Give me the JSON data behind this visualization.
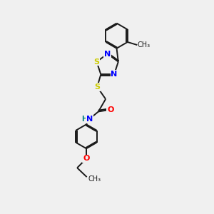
{
  "background_color": "#f0f0f0",
  "bond_color": "#1a1a1a",
  "S_color": "#cccc00",
  "N_color": "#0000ff",
  "O_color": "#ff0000",
  "H_color": "#008080",
  "font_size_atoms": 8,
  "line_width": 1.4,
  "figsize": [
    3.0,
    3.0
  ],
  "dpi": 100,
  "xlim": [
    -0.5,
    3.5
  ],
  "ylim": [
    -4.2,
    4.5
  ]
}
